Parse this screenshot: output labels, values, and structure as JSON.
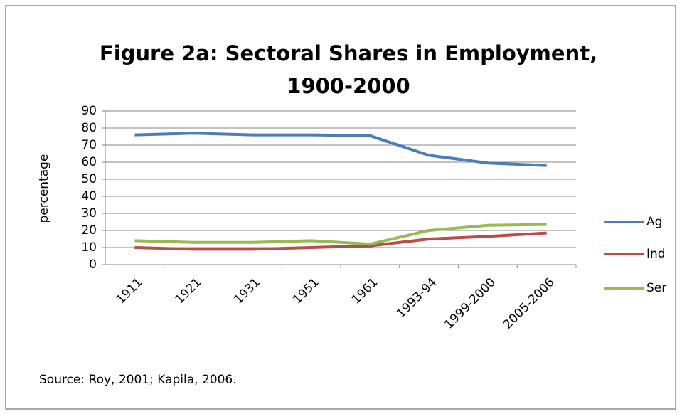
{
  "chart_data": {
    "type": "line",
    "title": "Figure 2a: Sectoral Shares in Employment, 1900-2000",
    "y_label": "percentage",
    "source": "Source: Roy, 2001; Kapila, 2006.",
    "categories": [
      "1911",
      "1921",
      "1931",
      "1951",
      "1961",
      "1993-94",
      "1999-2000",
      "2005-2006"
    ],
    "series": [
      {
        "name": "Ag",
        "color": "#4a7ebb",
        "values": [
          76,
          77,
          76,
          76,
          75.5,
          64,
          59.5,
          58
        ]
      },
      {
        "name": "Ind",
        "color": "#be4b48",
        "values": [
          10,
          9,
          9,
          10,
          11,
          15,
          16.5,
          18.5
        ]
      },
      {
        "name": "Ser",
        "color": "#98b954",
        "values": [
          14,
          13,
          13,
          14,
          12,
          20,
          23,
          23.5
        ]
      }
    ],
    "ylim": [
      0,
      90
    ],
    "yticks": [
      0,
      10,
      20,
      30,
      40,
      50,
      60,
      70,
      80,
      90
    ],
    "grid": true,
    "legend": "right"
  }
}
